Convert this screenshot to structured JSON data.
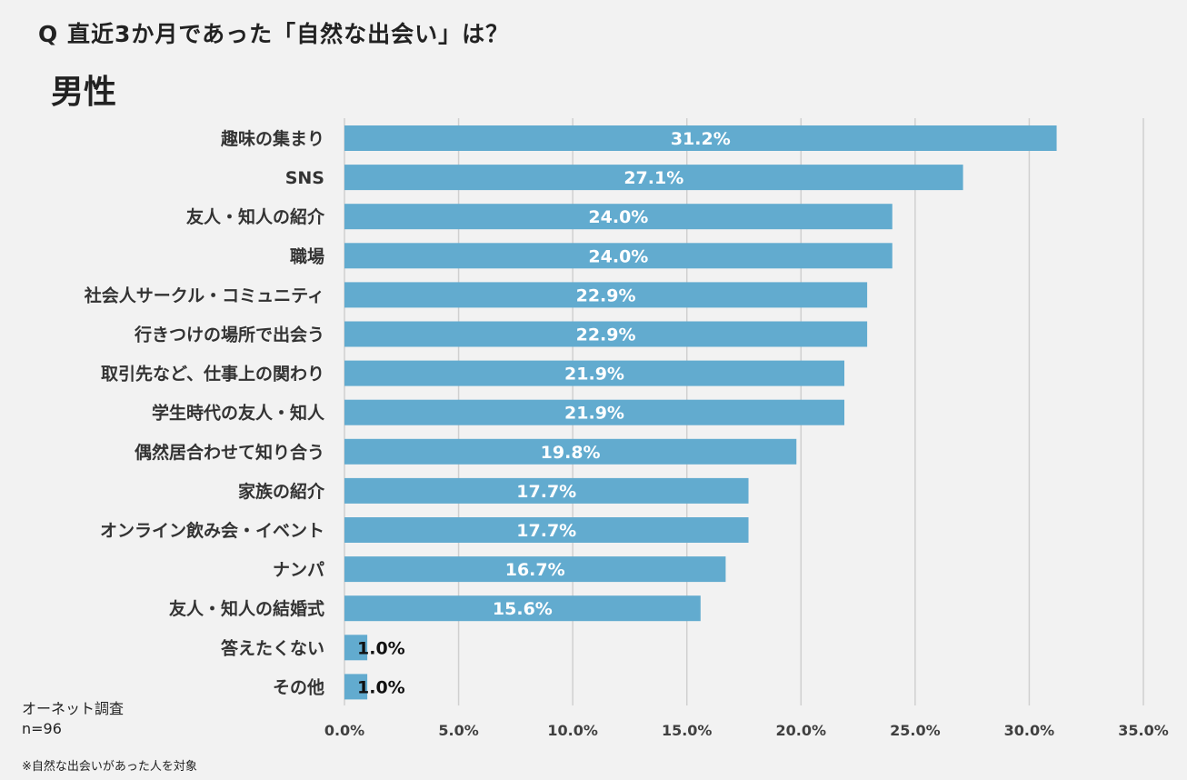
{
  "header": {
    "question": "Q 直近3か月であった「自然な出会い」は？",
    "segment": "男性"
  },
  "source": {
    "survey": "オーネット調査",
    "sample": "n=96",
    "note": "※自然な出会いがあった人を対象"
  },
  "colors": {
    "bar": "#62abcf",
    "grid": "#d0d0d0",
    "background": "#f2f2f2"
  },
  "chart_data": {
    "type": "bar",
    "orientation": "horizontal",
    "categories": [
      "趣味の集まり",
      "SNS",
      "友人・知人の紹介",
      "職場",
      "社会人サークル・コミュニティ",
      "行きつけの場所で出会う",
      "取引先など、仕事上の関わり",
      "学生時代の友人・知人",
      "偶然居合わせて知り合う",
      "家族の紹介",
      "オンライン飲み会・イベント",
      "ナンパ",
      "友人・知人の結婚式",
      "答えたくない",
      "その他"
    ],
    "values": [
      31.2,
      27.1,
      24.0,
      24.0,
      22.9,
      22.9,
      21.9,
      21.9,
      19.8,
      17.7,
      17.7,
      16.7,
      15.6,
      1.0,
      1.0
    ],
    "data_labels": [
      "31.2%",
      "27.1%",
      "24.0%",
      "24.0%",
      "22.9%",
      "22.9%",
      "21.9%",
      "21.9%",
      "19.8%",
      "17.7%",
      "17.7%",
      "16.7%",
      "15.6%",
      "1.0%",
      "1.0%"
    ],
    "xlim": [
      0,
      35
    ],
    "ticks": [
      0,
      5,
      10,
      15,
      20,
      25,
      30,
      35
    ],
    "tick_labels": [
      "0.0%",
      "5.0%",
      "10.0%",
      "15.0%",
      "20.0%",
      "25.0%",
      "30.0%",
      "35.0%"
    ],
    "grid": true
  }
}
